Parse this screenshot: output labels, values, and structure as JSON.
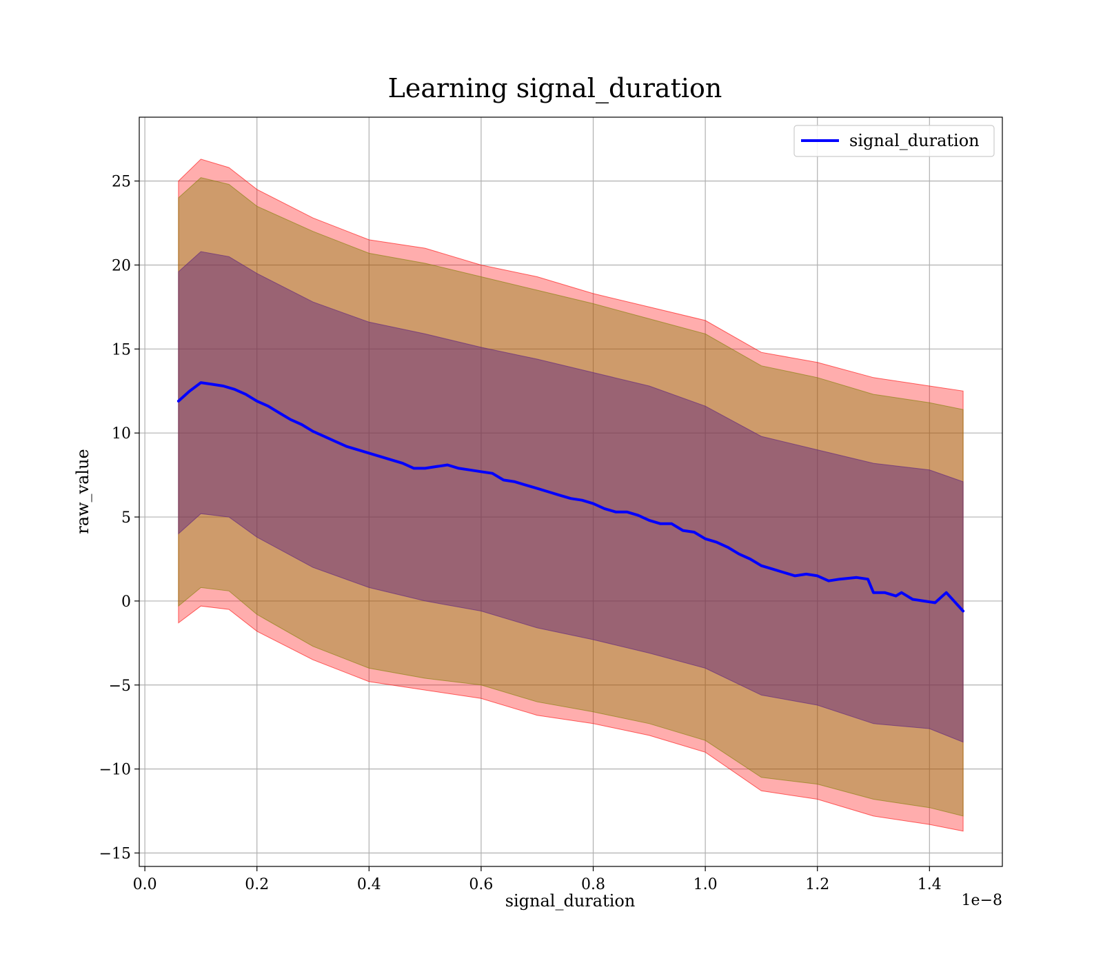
{
  "chart_data": {
    "type": "line",
    "title": "Learning signal_duration",
    "xlabel": "signal_duration",
    "ylabel": "raw_value",
    "x_offset_label": "1e−8",
    "x_ticks": [
      0.0,
      0.2,
      0.4,
      0.6,
      0.8,
      1.0,
      1.2,
      1.4
    ],
    "x_tick_labels": [
      "0.0",
      "0.2",
      "0.4",
      "0.6",
      "0.8",
      "1.0",
      "1.2",
      "1.4"
    ],
    "y_ticks": [
      -15,
      -10,
      -5,
      0,
      5,
      10,
      15,
      20,
      25
    ],
    "y_tick_labels": [
      "−15",
      "−10",
      "−5",
      "0",
      "5",
      "10",
      "15",
      "20",
      "25"
    ],
    "xlim": [
      -0.01,
      1.53
    ],
    "ylim": [
      -15.8,
      28.8
    ],
    "grid": true,
    "legend_position": "top-right",
    "colors": {
      "mean_line": "#0000ff",
      "band_outer": "#ff0000",
      "band_middle": "#7f7f00",
      "band_inner": "#5a1f7f"
    },
    "series": [
      {
        "name": "signal_duration",
        "x": [
          0.06,
          0.08,
          0.1,
          0.12,
          0.14,
          0.16,
          0.18,
          0.2,
          0.22,
          0.24,
          0.26,
          0.28,
          0.3,
          0.32,
          0.34,
          0.36,
          0.38,
          0.4,
          0.42,
          0.44,
          0.46,
          0.48,
          0.5,
          0.52,
          0.54,
          0.56,
          0.58,
          0.6,
          0.62,
          0.64,
          0.66,
          0.68,
          0.7,
          0.72,
          0.74,
          0.76,
          0.78,
          0.8,
          0.82,
          0.84,
          0.86,
          0.88,
          0.9,
          0.92,
          0.94,
          0.96,
          0.98,
          1.0,
          1.02,
          1.04,
          1.06,
          1.08,
          1.1,
          1.12,
          1.14,
          1.16,
          1.18,
          1.2,
          1.22,
          1.24,
          1.27,
          1.29,
          1.3,
          1.32,
          1.34,
          1.35,
          1.37,
          1.41,
          1.43,
          1.46
        ],
        "y": [
          11.9,
          12.5,
          13.0,
          12.9,
          12.8,
          12.6,
          12.3,
          11.9,
          11.6,
          11.2,
          10.8,
          10.5,
          10.1,
          9.8,
          9.5,
          9.2,
          9.0,
          8.8,
          8.6,
          8.4,
          8.2,
          7.9,
          7.9,
          8.0,
          8.1,
          7.9,
          7.8,
          7.7,
          7.6,
          7.2,
          7.1,
          6.9,
          6.7,
          6.5,
          6.3,
          6.1,
          6.0,
          5.8,
          5.5,
          5.3,
          5.3,
          5.1,
          4.8,
          4.6,
          4.6,
          4.2,
          4.1,
          3.7,
          3.5,
          3.2,
          2.8,
          2.5,
          2.1,
          1.9,
          1.7,
          1.5,
          1.6,
          1.5,
          1.2,
          1.3,
          1.4,
          1.3,
          0.5,
          0.5,
          0.3,
          0.5,
          0.1,
          -0.1,
          0.5,
          -0.6
        ]
      }
    ],
    "bands": [
      {
        "label": "outer",
        "x": [
          0.06,
          0.1,
          0.15,
          0.2,
          0.3,
          0.4,
          0.5,
          0.6,
          0.7,
          0.8,
          0.9,
          1.0,
          1.1,
          1.2,
          1.3,
          1.4,
          1.46
        ],
        "upper": [
          25.0,
          26.3,
          25.8,
          24.5,
          22.8,
          21.5,
          21.0,
          20.0,
          19.3,
          18.3,
          17.5,
          16.7,
          14.8,
          14.2,
          13.3,
          12.8,
          12.5
        ],
        "lower": [
          -1.3,
          -0.3,
          -0.5,
          -1.8,
          -3.5,
          -4.8,
          -5.3,
          -5.8,
          -6.8,
          -7.3,
          -8.0,
          -9.0,
          -11.3,
          -11.8,
          -12.8,
          -13.3,
          -13.7
        ]
      },
      {
        "label": "middle",
        "x": [
          0.06,
          0.1,
          0.15,
          0.2,
          0.3,
          0.4,
          0.5,
          0.6,
          0.7,
          0.8,
          0.9,
          1.0,
          1.1,
          1.2,
          1.3,
          1.4,
          1.46
        ],
        "upper": [
          24.0,
          25.2,
          24.8,
          23.5,
          22.0,
          20.7,
          20.1,
          19.3,
          18.5,
          17.7,
          16.8,
          15.9,
          14.0,
          13.3,
          12.3,
          11.8,
          11.4
        ],
        "lower": [
          -0.3,
          0.8,
          0.6,
          -0.8,
          -2.7,
          -4.0,
          -4.6,
          -5.0,
          -6.0,
          -6.6,
          -7.3,
          -8.3,
          -10.5,
          -10.9,
          -11.8,
          -12.3,
          -12.8
        ]
      },
      {
        "label": "inner",
        "x": [
          0.06,
          0.1,
          0.15,
          0.2,
          0.3,
          0.4,
          0.5,
          0.6,
          0.7,
          0.8,
          0.9,
          1.0,
          1.1,
          1.2,
          1.3,
          1.4,
          1.46
        ],
        "upper": [
          19.6,
          20.8,
          20.5,
          19.5,
          17.8,
          16.6,
          15.9,
          15.1,
          14.4,
          13.6,
          12.8,
          11.6,
          9.8,
          9.0,
          8.2,
          7.8,
          7.1
        ],
        "lower": [
          4.0,
          5.2,
          5.0,
          3.8,
          2.0,
          0.8,
          0.0,
          -0.6,
          -1.6,
          -2.3,
          -3.1,
          -4.0,
          -5.6,
          -6.2,
          -7.3,
          -7.6,
          -8.4
        ]
      }
    ]
  }
}
